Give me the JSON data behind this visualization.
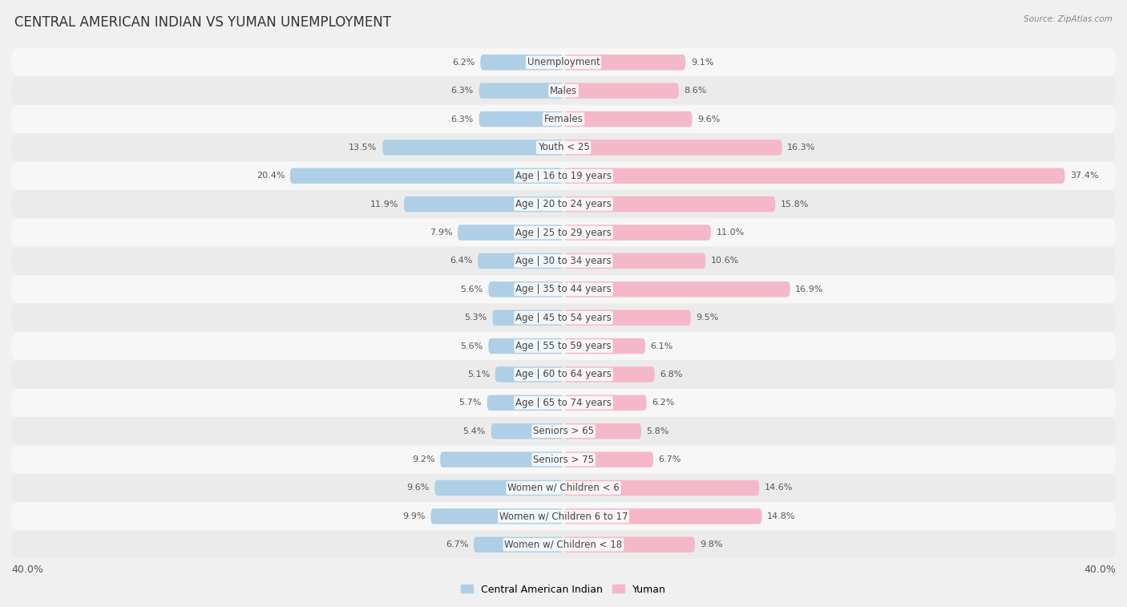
{
  "title": "CENTRAL AMERICAN INDIAN VS YUMAN UNEMPLOYMENT",
  "source": "Source: ZipAtlas.com",
  "categories": [
    "Unemployment",
    "Males",
    "Females",
    "Youth < 25",
    "Age | 16 to 19 years",
    "Age | 20 to 24 years",
    "Age | 25 to 29 years",
    "Age | 30 to 34 years",
    "Age | 35 to 44 years",
    "Age | 45 to 54 years",
    "Age | 55 to 59 years",
    "Age | 60 to 64 years",
    "Age | 65 to 74 years",
    "Seniors > 65",
    "Seniors > 75",
    "Women w/ Children < 6",
    "Women w/ Children 6 to 17",
    "Women w/ Children < 18"
  ],
  "left_values": [
    6.2,
    6.3,
    6.3,
    13.5,
    20.4,
    11.9,
    7.9,
    6.4,
    5.6,
    5.3,
    5.6,
    5.1,
    5.7,
    5.4,
    9.2,
    9.6,
    9.9,
    6.7
  ],
  "right_values": [
    9.1,
    8.6,
    9.6,
    16.3,
    37.4,
    15.8,
    11.0,
    10.6,
    16.9,
    9.5,
    6.1,
    6.8,
    6.2,
    5.8,
    6.7,
    14.6,
    14.8,
    9.8
  ],
  "left_color": "#7ab3d4",
  "right_color": "#f08ca8",
  "left_color_light": "#aecfe6",
  "right_color_light": "#f4b8c8",
  "left_label": "Central American Indian",
  "right_label": "Yuman",
  "xlim": 40.0,
  "bg_color": "#f0f0f0",
  "row_bg_color_light": "#f7f7f7",
  "row_bg_color_dark": "#ebebeb",
  "title_fontsize": 12,
  "label_fontsize": 8.5,
  "value_fontsize": 8.0,
  "source_fontsize": 7.5
}
